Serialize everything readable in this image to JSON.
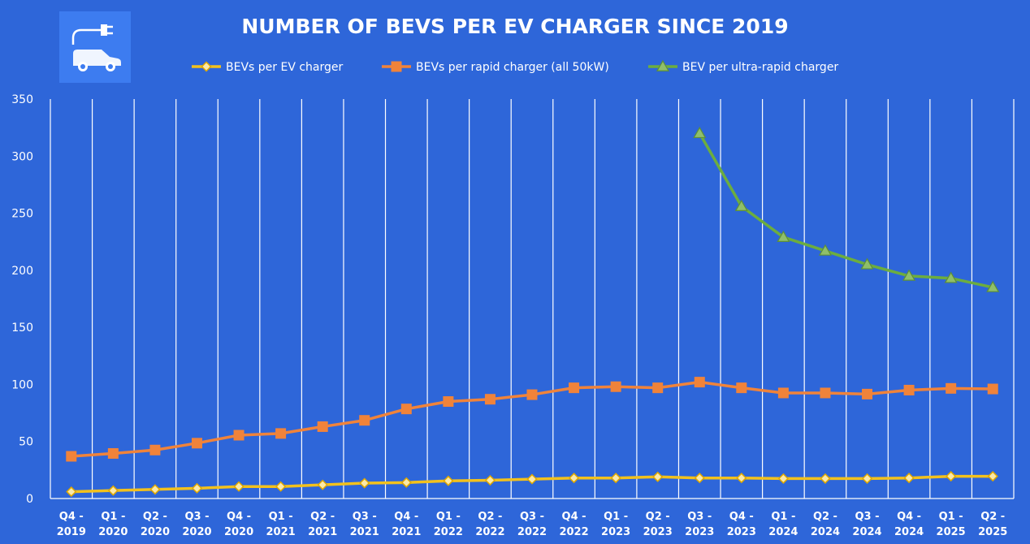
{
  "chart_data": {
    "type": "line",
    "title": "NUMBER OF BEVS PER EV CHARGER SINCE 2019",
    "xlabel": "",
    "ylabel": "",
    "ylim": [
      0,
      350
    ],
    "y_ticks": [
      0,
      50,
      100,
      150,
      200,
      250,
      300,
      350
    ],
    "grid": "vertical",
    "legend_position": "top",
    "categories": [
      [
        "Q4 -",
        "2019"
      ],
      [
        "Q1 -",
        "2020"
      ],
      [
        "Q2 -",
        "2020"
      ],
      [
        "Q3 -",
        "2020"
      ],
      [
        "Q4 -",
        "2020"
      ],
      [
        "Q1 -",
        "2021"
      ],
      [
        "Q2 -",
        "2021"
      ],
      [
        "Q3 -",
        "2021"
      ],
      [
        "Q4 -",
        "2021"
      ],
      [
        "Q1 -",
        "2022"
      ],
      [
        "Q2 -",
        "2022"
      ],
      [
        "Q3 -",
        "2022"
      ],
      [
        "Q4 -",
        "2022"
      ],
      [
        "Q1 -",
        "2023"
      ],
      [
        "Q2 -",
        "2023"
      ],
      [
        "Q3 -",
        "2023"
      ],
      [
        "Q4 -",
        "2023"
      ],
      [
        "Q1 -",
        "2024"
      ],
      [
        "Q2 -",
        "2024"
      ],
      [
        "Q3 -",
        "2024"
      ],
      [
        "Q4 -",
        "2024"
      ],
      [
        "Q1 -",
        "2025"
      ],
      [
        "Q2 -",
        "2025"
      ]
    ],
    "series": [
      {
        "name": "BEVs per EV charger",
        "color": "#f2c11d",
        "marker": "diamond",
        "values": [
          6,
          7,
          8,
          9,
          10.5,
          10.5,
          12,
          13.5,
          14,
          15.5,
          16,
          17,
          18,
          18,
          19,
          18,
          18,
          17.5,
          17.5,
          17.5,
          18,
          19.5,
          19.5
        ]
      },
      {
        "name": "BEVs per rapid charger (all 50kW)",
        "color": "#f0833a",
        "marker": "square",
        "values": [
          37,
          39.5,
          42.5,
          48.5,
          55.5,
          57,
          63,
          68.5,
          78.5,
          85,
          87,
          91,
          97,
          98,
          97,
          102,
          97,
          92.5,
          92.5,
          91.5,
          95,
          96.5,
          96
        ]
      },
      {
        "name": "BEV per ultra-rapid charger",
        "color": "#6cad3f",
        "marker": "triangle",
        "values": [
          null,
          null,
          null,
          null,
          null,
          null,
          null,
          null,
          null,
          null,
          null,
          null,
          null,
          null,
          null,
          320,
          256,
          229,
          217,
          205,
          195,
          193,
          185
        ]
      }
    ]
  },
  "logo": {
    "icon": "ev-charger-car-icon"
  }
}
